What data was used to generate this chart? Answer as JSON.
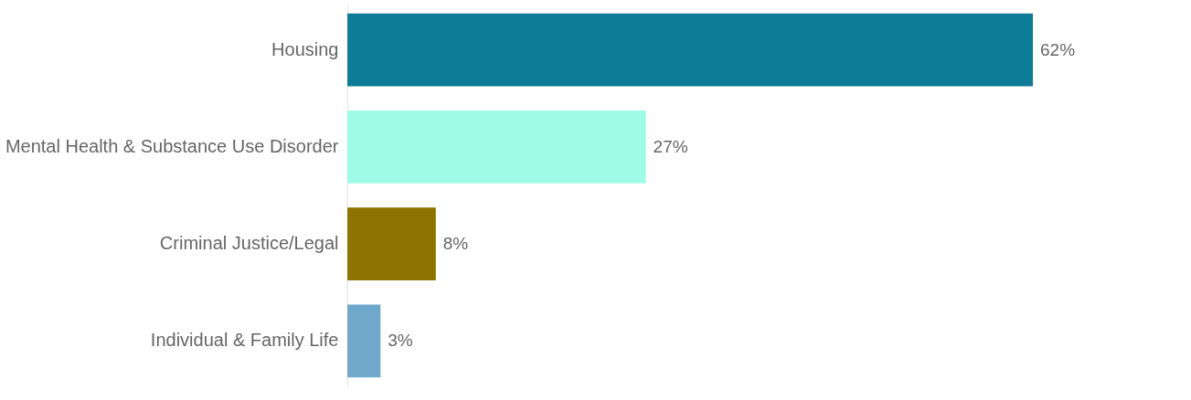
{
  "chart_data": {
    "type": "bar",
    "orientation": "horizontal",
    "categories": [
      "Housing",
      "Mental Health & Substance Use Disorder",
      "Criminal Justice/Legal",
      "Individual & Family Life"
    ],
    "values": [
      62,
      27,
      8,
      3
    ],
    "colors": [
      "#0e7c96",
      "#a0fbe6",
      "#8f7300",
      "#70a8cb"
    ],
    "value_labels": [
      "62%",
      "27%",
      "8%",
      "3%"
    ],
    "grid": false
  }
}
